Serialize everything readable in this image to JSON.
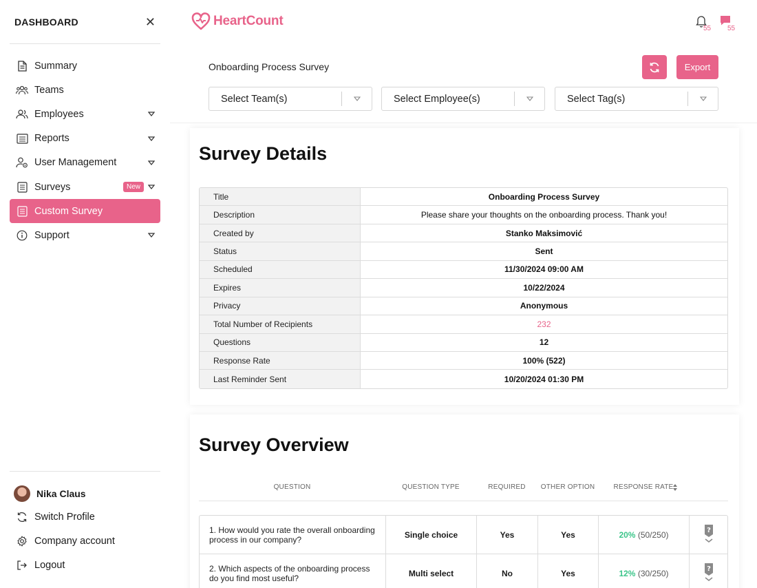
{
  "sidebar": {
    "title": "DASHBOARD",
    "items": [
      {
        "label": "Summary"
      },
      {
        "label": "Teams"
      },
      {
        "label": "Employees"
      },
      {
        "label": "Reports"
      },
      {
        "label": "User Management"
      },
      {
        "label": "Surveys",
        "badge": "New"
      },
      {
        "label": "Custom Survey"
      },
      {
        "label": "Support"
      }
    ],
    "user": {
      "name": "Nika Claus"
    },
    "bottom": [
      {
        "label": "Switch Profile"
      },
      {
        "label": "Company account"
      },
      {
        "label": "Logout"
      }
    ]
  },
  "header": {
    "logo_text": "HeartCount",
    "notifications_count": "55",
    "messages_count": "55",
    "page_title": "Onboarding Process Survey",
    "export_label": "Export",
    "filters": {
      "team_placeholder": "Select Team(s)",
      "employee_placeholder": "Select Employee(s)",
      "tag_placeholder": "Select Tag(s)"
    }
  },
  "details": {
    "title": "Survey Details",
    "rows": [
      {
        "key": "Title",
        "value": "Onboarding Process Survey"
      },
      {
        "key": "Description",
        "value": "Please share your thoughts on the onboarding process. Thank you!"
      },
      {
        "key": "Created by",
        "value": "Stanko Maksimović"
      },
      {
        "key": "Status",
        "value": "Sent"
      },
      {
        "key": "Scheduled",
        "value": "11/30/2024 09:00 AM"
      },
      {
        "key": "Expires",
        "value": "10/22/2024"
      },
      {
        "key": "Privacy",
        "value": "Anonymous"
      },
      {
        "key": "Total Number of Recipients",
        "value": "232"
      },
      {
        "key": "Questions",
        "value": "12"
      },
      {
        "key": "Response Rate",
        "value": "100% (522)"
      },
      {
        "key": "Last Reminder Sent",
        "value": "10/20/2024 01:30 PM"
      }
    ]
  },
  "overview": {
    "title": "Survey Overview",
    "columns": {
      "question": "QUESTION",
      "type": "QUESTION TYPE",
      "required": "REQUIRED",
      "other": "OTHER OPTION",
      "rate": "RESPONSE RATE"
    },
    "rows": [
      {
        "question": "1. How would you rate the overall onboarding process in our company?",
        "type": "Single choice",
        "required": "Yes",
        "other": "Yes",
        "rate_pct": "20%",
        "rate_frac": "(50/250)"
      },
      {
        "question": "2. Which aspects of the onboarding process do you find most useful?",
        "type": "Multi select",
        "required": "No",
        "other": "Yes",
        "rate_pct": "12%",
        "rate_frac": "(30/250)"
      }
    ]
  },
  "colors": {
    "accent": "#e8638a",
    "success": "#3cc58a"
  }
}
